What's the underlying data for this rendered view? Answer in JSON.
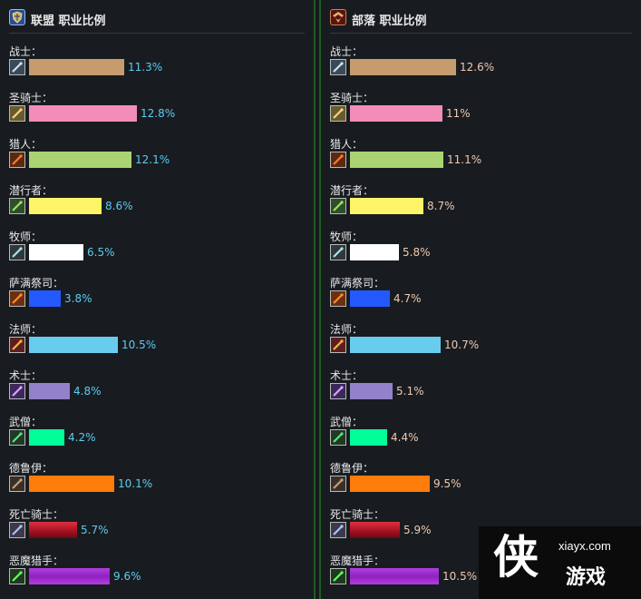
{
  "chart_data": [
    {
      "type": "bar",
      "title": "联盟 职业比例",
      "categories": [
        "战士：",
        "圣骑士：",
        "猎人：",
        "潜行者：",
        "牧师：",
        "萨满祭司：",
        "法师：",
        "术士：",
        "武僧：",
        "德鲁伊：",
        "死亡骑士：",
        "恶魔猎手："
      ],
      "values": [
        11.3,
        12.8,
        12.1,
        8.6,
        6.5,
        3.8,
        10.5,
        4.8,
        4.2,
        10.1,
        5.7,
        9.6
      ],
      "value_labels": [
        "11.3%",
        "12.8%",
        "12.1%",
        "8.6%",
        "6.5%",
        "3.8%",
        "10.5%",
        "4.8%",
        "4.2%",
        "10.1%",
        "5.7%",
        "9.6%"
      ],
      "xlim": [
        0,
        14
      ],
      "grid": false
    },
    {
      "type": "bar",
      "title": "部落 职业比例",
      "categories": [
        "战士：",
        "圣骑士：",
        "猎人：",
        "潜行者：",
        "牧师：",
        "萨满祭司：",
        "法师：",
        "术士：",
        "武僧：",
        "德鲁伊：",
        "死亡骑士：",
        "恶魔猎手："
      ],
      "values": [
        12.6,
        11,
        11.1,
        8.7,
        5.8,
        4.7,
        10.7,
        5.1,
        4.4,
        9.5,
        5.9,
        10.5
      ],
      "value_labels": [
        "12.6%",
        "11%",
        "11.1%",
        "8.7%",
        "5.8%",
        "4.7%",
        "10.7%",
        "5.1%",
        "4.4%",
        "9.5%",
        "5.9%",
        "10.5%"
      ],
      "xlim": [
        0,
        14
      ],
      "grid": false
    }
  ],
  "class_colors": [
    "#c69b6d",
    "#f48cba",
    "#aad372",
    "#fff468",
    "#ffffff",
    "#2359ff",
    "#68ccef",
    "#9382c9",
    "#00ff98",
    "#ff7c0a",
    "#c41e3b",
    "#a330c9"
  ],
  "class_icons": [
    "sword-icon",
    "paladin-icon",
    "hunter-icon",
    "rogue-icon",
    "priest-icon",
    "shaman-icon",
    "mage-icon",
    "warlock-icon",
    "monk-icon",
    "druid-icon",
    "death-knight-icon",
    "demon-hunter-icon"
  ],
  "alliance_label_color": "#5ecbf0",
  "horde_label_color": "#f0c9b0",
  "watermark": {
    "big": "侠",
    "url": "xiayx.com",
    "cn": "游戏"
  }
}
